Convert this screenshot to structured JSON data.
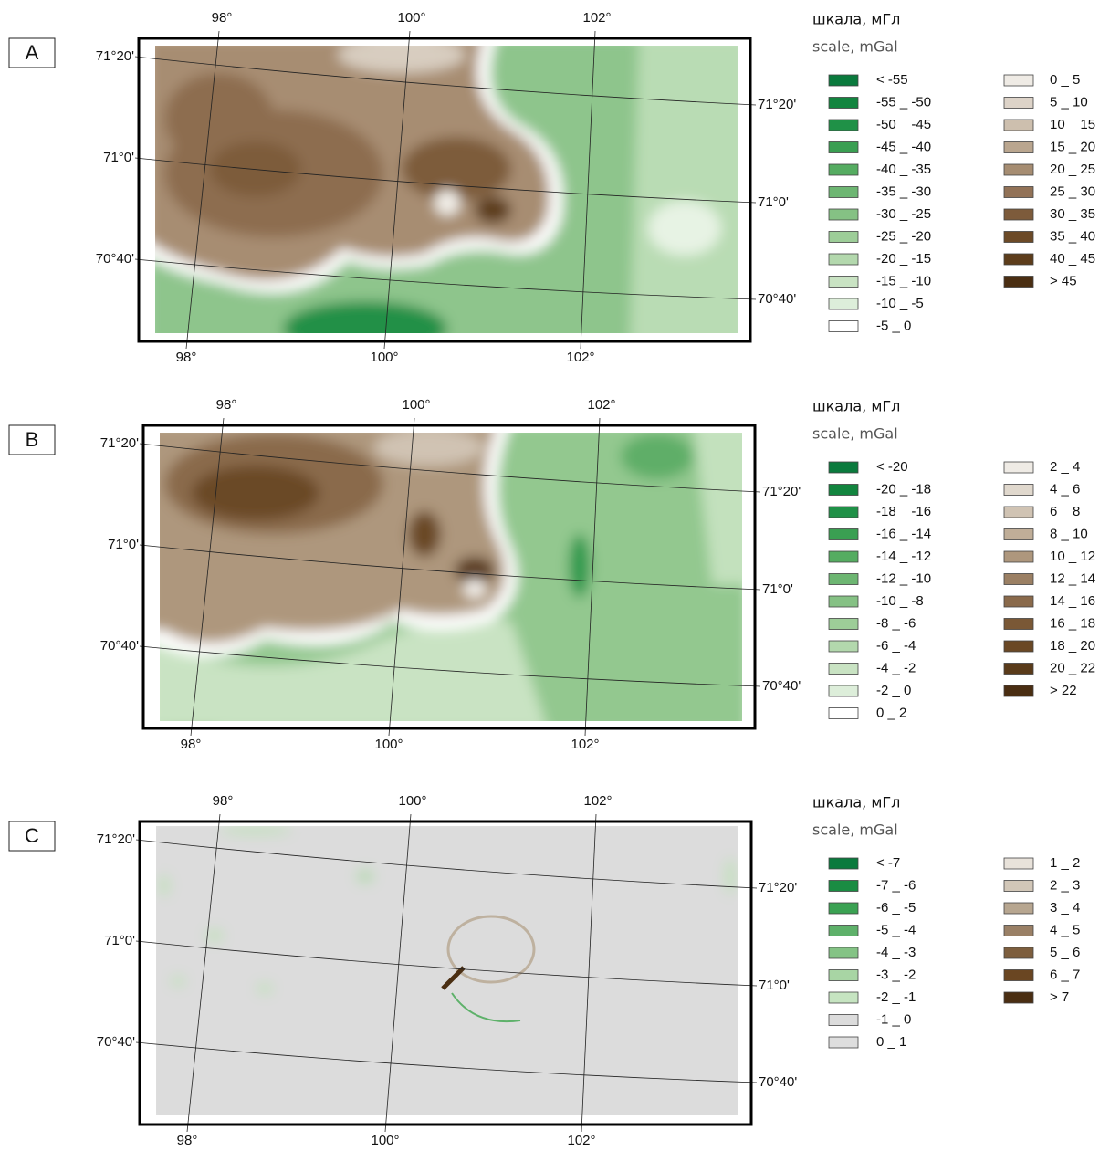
{
  "panels": [
    {
      "label": "A",
      "lon_top": [
        "98°",
        "100°",
        "102°"
      ],
      "lon_bottom": [
        "98°",
        "100°",
        "102°"
      ],
      "lat_left": [
        "71°20'",
        "71°0'",
        "70°40'"
      ],
      "lat_right": [
        "71°20'",
        "71°0'",
        "70°40'"
      ],
      "legend": {
        "title": "шкала, мГл",
        "subtitle": "scale, mGal",
        "left": [
          {
            "label": "< -55",
            "color": "#0a7a3d"
          },
          {
            "label": "-55 _ -50",
            "color": "#12853f"
          },
          {
            "label": "-50 _ -45",
            "color": "#1f9147"
          },
          {
            "label": "-45 _ -40",
            "color": "#3a9f52"
          },
          {
            "label": "-40 _ -35",
            "color": "#55ac61"
          },
          {
            "label": "-35 _ -30",
            "color": "#6db672"
          },
          {
            "label": "-30 _ -25",
            "color": "#85c184"
          },
          {
            "label": "-25 _ -20",
            "color": "#9dcd98"
          },
          {
            "label": "-20 _ -15",
            "color": "#b3d8ad"
          },
          {
            "label": "-15 _ -10",
            "color": "#c9e3c3"
          },
          {
            "label": "-10 _ -5",
            "color": "#ddeeda"
          },
          {
            "label": "-5 _ 0",
            "color": "#ffffff"
          }
        ],
        "right": [
          {
            "label": "0 _ 5",
            "color": "#efebe5"
          },
          {
            "label": "5 _ 10",
            "color": "#ddd3c8"
          },
          {
            "label": "10 _ 15",
            "color": "#cdbfae"
          },
          {
            "label": "15 _ 20",
            "color": "#baa68f"
          },
          {
            "label": "20 _ 25",
            "color": "#a68d72"
          },
          {
            "label": "25 _ 30",
            "color": "#927257"
          },
          {
            "label": "30 _ 35",
            "color": "#7d5b3b"
          },
          {
            "label": "35 _ 40",
            "color": "#6c4a27"
          },
          {
            "label": "40 _ 45",
            "color": "#5d3d1b"
          },
          {
            "label": "> 45",
            "color": "#4a2e12"
          }
        ]
      }
    },
    {
      "label": "B",
      "lon_top": [
        "98°",
        "100°",
        "102°"
      ],
      "lon_bottom": [
        "98°",
        "100°",
        "102°"
      ],
      "lat_left": [
        "71°20'",
        "71°0'",
        "70°40'"
      ],
      "lat_right": [
        "71°20'",
        "71°0'",
        "70°40'"
      ],
      "legend": {
        "title": "шкала, мГл",
        "subtitle": "scale, mGal",
        "left": [
          {
            "label": "< -20",
            "color": "#0a7a3d"
          },
          {
            "label": "-20 _ -18",
            "color": "#12853f"
          },
          {
            "label": "-18 _ -16",
            "color": "#1f9147"
          },
          {
            "label": "-16 _ -14",
            "color": "#3a9f52"
          },
          {
            "label": "-14 _ -12",
            "color": "#55ac61"
          },
          {
            "label": "-12 _ -10",
            "color": "#6db672"
          },
          {
            "label": "-10 _ -8",
            "color": "#85c184"
          },
          {
            "label": "-8 _ -6",
            "color": "#9dcd98"
          },
          {
            "label": "-6 _ -4",
            "color": "#b3d8ad"
          },
          {
            "label": "-4 _ -2",
            "color": "#c9e3c3"
          },
          {
            "label": "-2 _ 0",
            "color": "#ddeeda"
          },
          {
            "label": "0 _ 2",
            "color": "#ffffff"
          }
        ],
        "right": [
          {
            "label": "2 _ 4",
            "color": "#efebe5"
          },
          {
            "label": "4 _ 6",
            "color": "#e0d8cd"
          },
          {
            "label": "6 _ 8",
            "color": "#d0c3b3"
          },
          {
            "label": "8 _ 10",
            "color": "#c0ae98"
          },
          {
            "label": "10 _ 12",
            "color": "#ae977d"
          },
          {
            "label": "12 _ 14",
            "color": "#9b8064"
          },
          {
            "label": "14 _ 16",
            "color": "#8a6a4b"
          },
          {
            "label": "16 _ 18",
            "color": "#7a5836"
          },
          {
            "label": "18 _ 20",
            "color": "#6a4825"
          },
          {
            "label": "20 _ 22",
            "color": "#5a3b1a"
          },
          {
            "label": "> 22",
            "color": "#4a2e12"
          }
        ]
      }
    },
    {
      "label": "C",
      "lon_top": [
        "98°",
        "100°",
        "102°"
      ],
      "lon_bottom": [
        "98°",
        "100°",
        "102°"
      ],
      "lat_left": [
        "71°20'",
        "71°0'",
        "70°40'"
      ],
      "lat_right": [
        "71°20'",
        "71°0'",
        "70°40'"
      ],
      "legend": {
        "title": "шкала, мГл",
        "subtitle": "scale, mGal",
        "left": [
          {
            "label": "< -7",
            "color": "#0a7a3d"
          },
          {
            "label": "-7 _ -6",
            "color": "#1a8c43"
          },
          {
            "label": "-6 _ -5",
            "color": "#3ba253"
          },
          {
            "label": "-5 _ -4",
            "color": "#5eb16a"
          },
          {
            "label": "-4 _ -3",
            "color": "#84c385"
          },
          {
            "label": "-3 _ -2",
            "color": "#a8d5a4"
          },
          {
            "label": "-2 _ -1",
            "color": "#c6e4c1"
          },
          {
            "label": "-1 _ 0",
            "color": "#dcdcdc"
          },
          {
            "label": "0 _ 1",
            "color": "#dedede"
          }
        ],
        "right": [
          {
            "label": "1 _ 2",
            "color": "#e8e2da"
          },
          {
            "label": "2 _ 3",
            "color": "#d2c7b8"
          },
          {
            "label": "3 _ 4",
            "color": "#b7a690"
          },
          {
            "label": "4 _ 5",
            "color": "#9a8066"
          },
          {
            "label": "5 _ 6",
            "color": "#7d5e3e"
          },
          {
            "label": "6 _ 7",
            "color": "#6a4622"
          },
          {
            "label": "> 7",
            "color": "#4a2e12"
          }
        ]
      }
    }
  ]
}
